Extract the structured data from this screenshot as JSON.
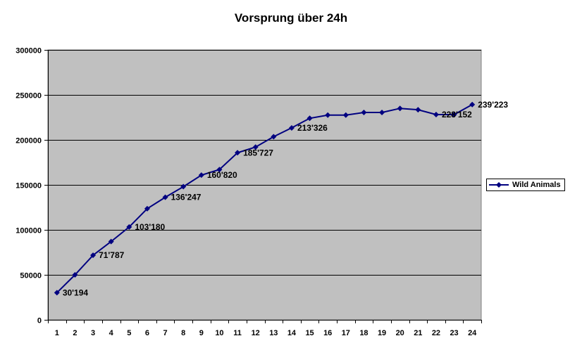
{
  "chart_data": {
    "type": "line",
    "title": "Vorsprung über 24h",
    "xlabel": "",
    "ylabel": "",
    "categories": [
      "1",
      "2",
      "3",
      "4",
      "5",
      "6",
      "7",
      "8",
      "9",
      "10",
      "11",
      "12",
      "13",
      "14",
      "15",
      "16",
      "17",
      "18",
      "19",
      "20",
      "21",
      "22",
      "23",
      "24"
    ],
    "ylim": [
      0,
      300000
    ],
    "yticks": [
      "0",
      "50000",
      "100000",
      "150000",
      "200000",
      "250000",
      "300000"
    ],
    "grid": true,
    "legend": "right",
    "series": [
      {
        "name": "Wild Animals",
        "color": "#000080",
        "values": [
          30194,
          50000,
          71787,
          87000,
          103180,
          123500,
          136247,
          148000,
          160820,
          167000,
          185727,
          192000,
          203500,
          213326,
          224000,
          227500,
          227500,
          230500,
          230500,
          235000,
          233500,
          228152,
          228152,
          239223
        ]
      }
    ],
    "data_labels": [
      {
        "index": 0,
        "text": "30'194"
      },
      {
        "index": 2,
        "text": "71'787"
      },
      {
        "index": 4,
        "text": "103'180"
      },
      {
        "index": 6,
        "text": "136'247"
      },
      {
        "index": 8,
        "text": "160'820"
      },
      {
        "index": 10,
        "text": "185'727"
      },
      {
        "index": 13,
        "text": "213'326"
      },
      {
        "index": 21,
        "text": "228'152"
      },
      {
        "index": 23,
        "text": "239'223"
      }
    ],
    "plot_background": "#c0c0c0"
  }
}
